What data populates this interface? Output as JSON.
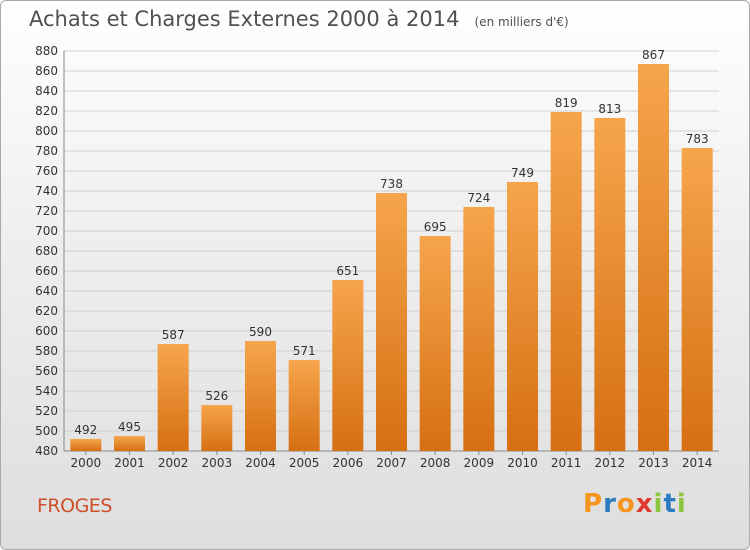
{
  "title": "Achats et Charges Externes 2000 à 2014",
  "unit": "(en milliers d'€)",
  "commune": "FROGES",
  "brand": {
    "letters": [
      "P",
      "r",
      "o",
      "x",
      "i",
      "t",
      "i"
    ],
    "colors": [
      "#f7941d",
      "#2b7bc0",
      "#f7941d",
      "#e03a2f",
      "#8cc63f",
      "#2b7bc0",
      "#8cc63f"
    ]
  },
  "colors": {
    "bar_top": "#f6a54c",
    "bar_bottom": "#d66f12",
    "axis_text": "#333333",
    "grid": "#d0d0d0",
    "commune": "#d04e2c"
  },
  "chart_data": {
    "type": "bar",
    "categories": [
      "2000",
      "2001",
      "2002",
      "2003",
      "2004",
      "2005",
      "2006",
      "2007",
      "2008",
      "2009",
      "2010",
      "2011",
      "2012",
      "2013",
      "2014"
    ],
    "values": [
      492,
      495,
      587,
      526,
      590,
      571,
      651,
      738,
      695,
      724,
      749,
      819,
      813,
      867,
      783
    ],
    "title": "Achats et Charges Externes 2000 à 2014",
    "xlabel": "",
    "ylabel": "",
    "ylim": [
      480,
      880
    ],
    "ytick_step": 20,
    "grid": true,
    "data_labels": true
  }
}
